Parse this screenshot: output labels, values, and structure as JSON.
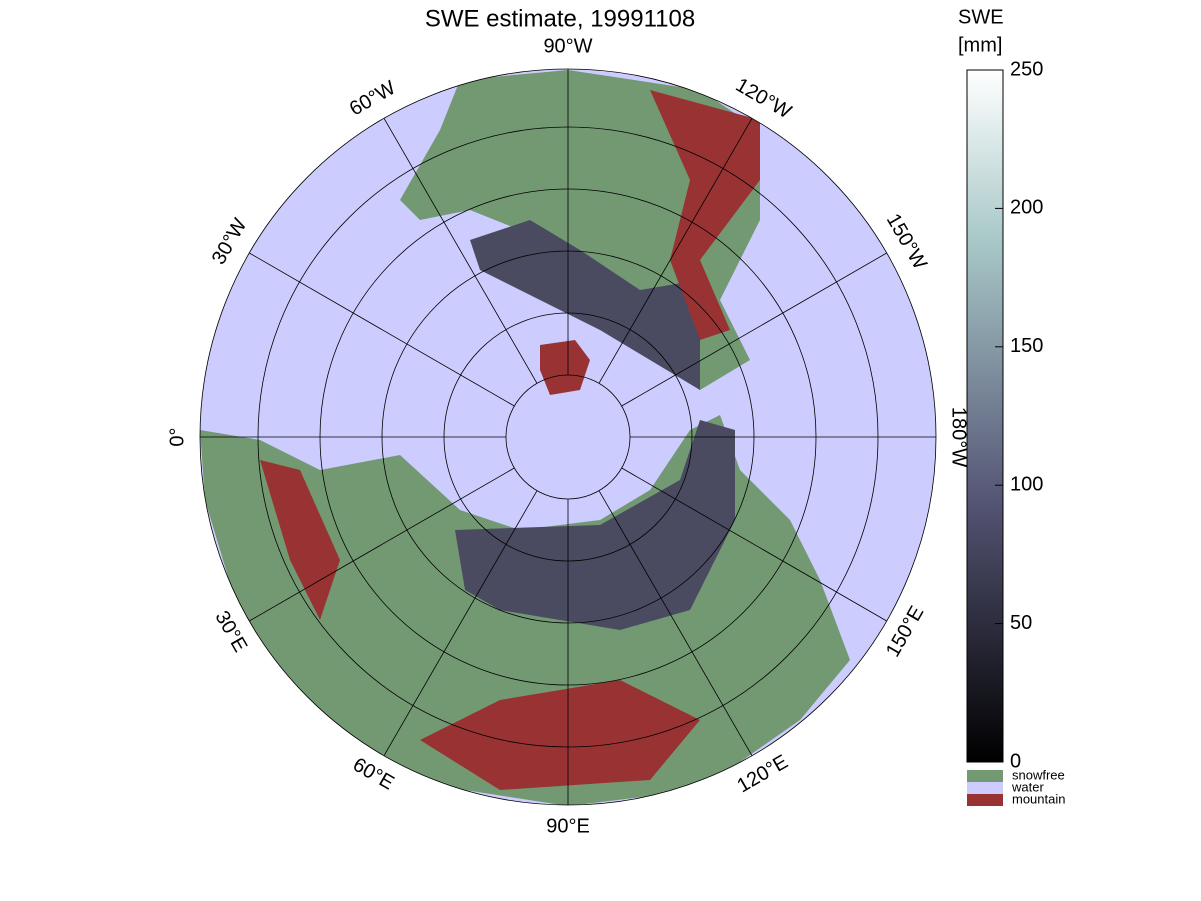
{
  "map": {
    "title": "SWE estimate, 19991108",
    "longitude_labels": [
      {
        "value": -90,
        "label": "90°W"
      },
      {
        "value": -120,
        "label": "120°W"
      },
      {
        "value": -150,
        "label": "150°W"
      },
      {
        "value": -180,
        "label": "180°W"
      },
      {
        "value": 150,
        "label": "150°E"
      },
      {
        "value": 120,
        "label": "120°E"
      },
      {
        "value": 90,
        "label": "90°E"
      },
      {
        "value": 60,
        "label": "60°E"
      },
      {
        "value": 30,
        "label": "30°E"
      },
      {
        "value": 0,
        "label": "0°"
      },
      {
        "value": -30,
        "label": "30°W"
      },
      {
        "value": -60,
        "label": "60°W"
      }
    ],
    "colorbar": {
      "title": [
        "SWE",
        "[mm]"
      ],
      "lim": [
        0,
        250
      ],
      "ticks": [
        0,
        50,
        100,
        150,
        200,
        250
      ],
      "categories": [
        {
          "name": "snowfree",
          "color": "#739973"
        },
        {
          "name": "water",
          "color": "#ccccff"
        },
        {
          "name": "mountain",
          "color": "#993333"
        }
      ]
    }
  }
}
